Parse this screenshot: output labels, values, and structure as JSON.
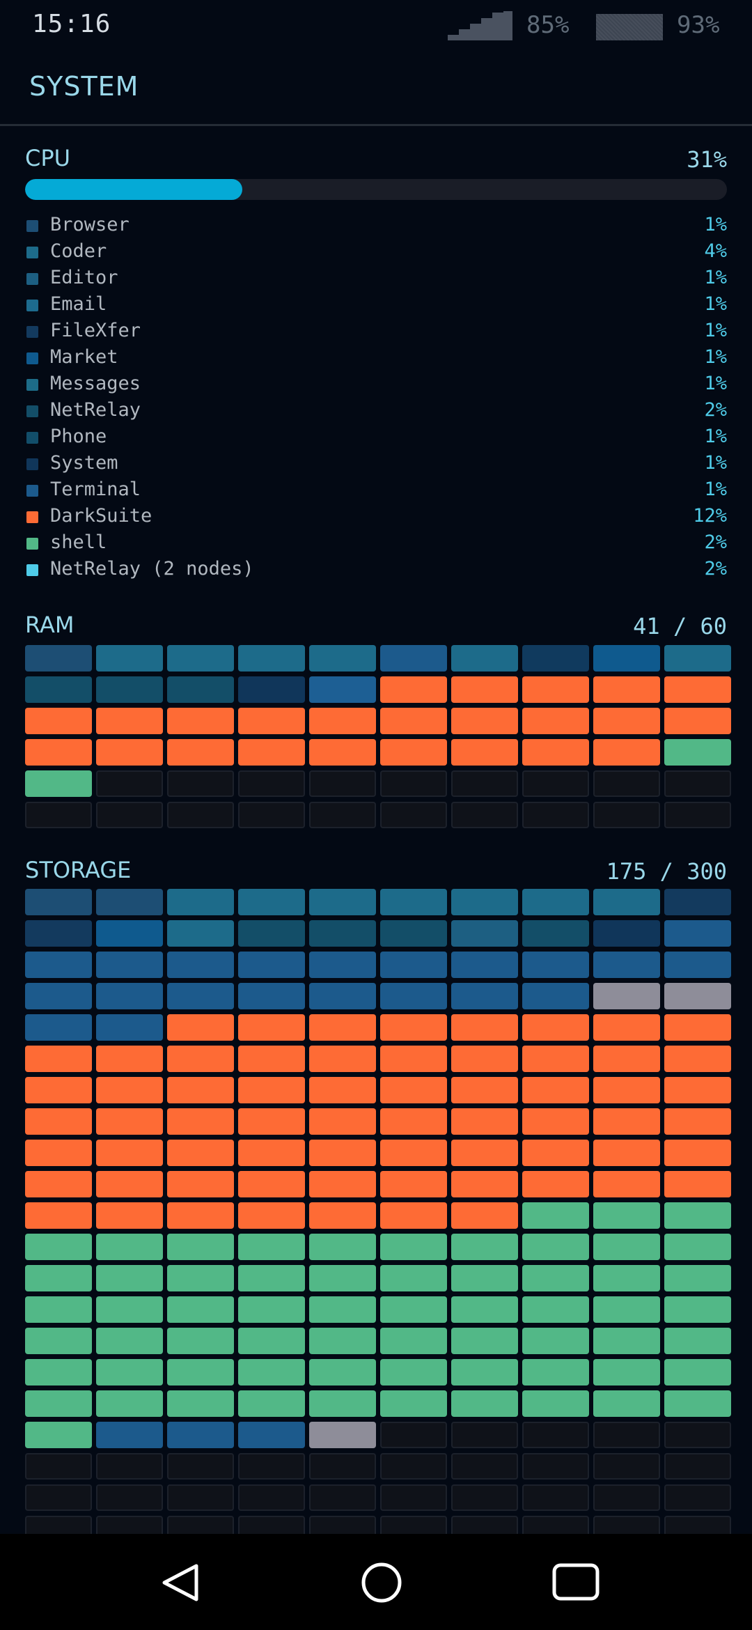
{
  "status_bar": {
    "time": "15:16",
    "signal_icon": "signal-icon",
    "signal_percent": "85%",
    "battery_icon": "battery-icon",
    "battery_percent": "93%"
  },
  "header": {
    "title": "SYSTEM"
  },
  "colors": {
    "accent": "#05aad6",
    "title": "#9ad8ea",
    "percent_text": "#4fcbe8",
    "darksuite": "#fe6b35",
    "shell": "#52b887",
    "netrelay_nodes": "#4fcbe8",
    "other": "#8e8d99",
    "empty": "#0f1219"
  },
  "cpu": {
    "label": "CPU",
    "percent_text": "31%",
    "usage_fraction": 0.31,
    "processes": [
      {
        "name": "Browser",
        "percent": "1%",
        "color": "#1d4e74"
      },
      {
        "name": "Coder",
        "percent": "4%",
        "color": "#1d6b8a"
      },
      {
        "name": "Editor",
        "percent": "1%",
        "color": "#1d5f82"
      },
      {
        "name": "Email",
        "percent": "1%",
        "color": "#1d6b8e"
      },
      {
        "name": "FileXfer",
        "percent": "1%",
        "color": "#133a5e"
      },
      {
        "name": "Market",
        "percent": "1%",
        "color": "#0f5a8e"
      },
      {
        "name": "Messages",
        "percent": "1%",
        "color": "#1d6c88"
      },
      {
        "name": "NetRelay",
        "percent": "2%",
        "color": "#134e68"
      },
      {
        "name": "Phone",
        "percent": "1%",
        "color": "#124e6a"
      },
      {
        "name": "System",
        "percent": "1%",
        "color": "#10365a"
      },
      {
        "name": "Terminal",
        "percent": "1%",
        "color": "#1c5a8c"
      },
      {
        "name": "DarkSuite",
        "percent": "12%",
        "color": "#fe6b35"
      },
      {
        "name": "shell",
        "percent": "2%",
        "color": "#52b887"
      },
      {
        "name": "NetRelay (2 nodes)",
        "percent": "2%",
        "color": "#4fcbe8"
      }
    ]
  },
  "ram": {
    "label": "RAM",
    "value_text": "41 / 60",
    "blocks": [
      "#1d4e74",
      "#1d6b8a",
      "#1d6b8a",
      "#1d6b8a",
      "#1d6b8a",
      "#1c5a8c",
      "#1d6b8a",
      "#103a5e",
      "#0f5a8e",
      "#1d6b8a",
      "#134e68",
      "#134e68",
      "#134e68",
      "#10365a",
      "#1d5f94",
      "#fe6b35",
      "#fe6b35",
      "#fe6b35",
      "#fe6b35",
      "#fe6b35",
      "#fe6b35",
      "#fe6b35",
      "#fe6b35",
      "#fe6b35",
      "#fe6b35",
      "#fe6b35",
      "#fe6b35",
      "#fe6b35",
      "#fe6b35",
      "#fe6b35",
      "#fe6b35",
      "#fe6b35",
      "#fe6b35",
      "#fe6b35",
      "#fe6b35",
      "#fe6b35",
      "#fe6b35",
      "#fe6b35",
      "#fe6b35",
      "#52b887",
      "#52b887",
      "empty",
      "empty",
      "empty",
      "empty",
      "empty",
      "empty",
      "empty",
      "empty",
      "empty",
      "empty",
      "empty",
      "empty",
      "empty",
      "empty",
      "empty",
      "empty",
      "empty",
      "empty",
      "empty"
    ]
  },
  "storage": {
    "label": "STORAGE",
    "value_text": "175 / 300",
    "blocks": [
      "#1d4e74",
      "#1d4e74",
      "#1d6b8a",
      "#1d6b8a",
      "#1d6b8a",
      "#1d6b8a",
      "#1d6b8a",
      "#1d6b8a",
      "#1d6b8a",
      "#133a5e",
      "#133a5e",
      "#0f5a8e",
      "#1d6b8a",
      "#134e68",
      "#134e68",
      "#134e68",
      "#1d5f82",
      "#134e68",
      "#10365a",
      "#1c5a8c",
      "#1c5a8c",
      "#1c5a8c",
      "#1c5a8c",
      "#1c5a8c",
      "#1c5a8c",
      "#1c5a8c",
      "#1c5a8c",
      "#1c5a8c",
      "#1c5a8c",
      "#1c5a8c",
      "#1c5a8c",
      "#1c5a8c",
      "#1c5a8c",
      "#1c5a8c",
      "#1c5a8c",
      "#1c5a8c",
      "#1c5a8c",
      "#1c5a8c",
      "#8e8d99",
      "#8e8d99",
      "#1c5a8c",
      "#1c5a8c",
      "#fe6b35",
      "#fe6b35",
      "#fe6b35",
      "#fe6b35",
      "#fe6b35",
      "#fe6b35",
      "#fe6b35",
      "#fe6b35",
      "#fe6b35",
      "#fe6b35",
      "#fe6b35",
      "#fe6b35",
      "#fe6b35",
      "#fe6b35",
      "#fe6b35",
      "#fe6b35",
      "#fe6b35",
      "#fe6b35",
      "#fe6b35",
      "#fe6b35",
      "#fe6b35",
      "#fe6b35",
      "#fe6b35",
      "#fe6b35",
      "#fe6b35",
      "#fe6b35",
      "#fe6b35",
      "#fe6b35",
      "#fe6b35",
      "#fe6b35",
      "#fe6b35",
      "#fe6b35",
      "#fe6b35",
      "#fe6b35",
      "#fe6b35",
      "#fe6b35",
      "#fe6b35",
      "#fe6b35",
      "#fe6b35",
      "#fe6b35",
      "#fe6b35",
      "#fe6b35",
      "#fe6b35",
      "#fe6b35",
      "#fe6b35",
      "#fe6b35",
      "#fe6b35",
      "#fe6b35",
      "#fe6b35",
      "#fe6b35",
      "#fe6b35",
      "#fe6b35",
      "#fe6b35",
      "#fe6b35",
      "#fe6b35",
      "#fe6b35",
      "#fe6b35",
      "#fe6b35",
      "#fe6b35",
      "#fe6b35",
      "#fe6b35",
      "#fe6b35",
      "#fe6b35",
      "#fe6b35",
      "#fe6b35",
      "#52b887",
      "#52b887",
      "#52b887",
      "#52b887",
      "#52b887",
      "#52b887",
      "#52b887",
      "#52b887",
      "#52b887",
      "#52b887",
      "#52b887",
      "#52b887",
      "#52b887",
      "#52b887",
      "#52b887",
      "#52b887",
      "#52b887",
      "#52b887",
      "#52b887",
      "#52b887",
      "#52b887",
      "#52b887",
      "#52b887",
      "#52b887",
      "#52b887",
      "#52b887",
      "#52b887",
      "#52b887",
      "#52b887",
      "#52b887",
      "#52b887",
      "#52b887",
      "#52b887",
      "#52b887",
      "#52b887",
      "#52b887",
      "#52b887",
      "#52b887",
      "#52b887",
      "#52b887",
      "#52b887",
      "#52b887",
      "#52b887",
      "#52b887",
      "#52b887",
      "#52b887",
      "#52b887",
      "#52b887",
      "#52b887",
      "#52b887",
      "#52b887",
      "#52b887",
      "#52b887",
      "#52b887",
      "#52b887",
      "#52b887",
      "#52b887",
      "#52b887",
      "#52b887",
      "#52b887",
      "#52b887",
      "#52b887",
      "#52b887",
      "#52b887",
      "#1c5a8c",
      "#1c5a8c",
      "#1c5a8c",
      "#8e8d99",
      "empty",
      "empty",
      "empty",
      "empty",
      "empty",
      "empty",
      "empty",
      "empty",
      "empty",
      "empty",
      "empty",
      "empty",
      "empty",
      "empty",
      "empty",
      "empty",
      "empty",
      "empty",
      "empty",
      "empty",
      "empty",
      "empty",
      "empty",
      "empty",
      "empty",
      "empty",
      "empty",
      "empty",
      "empty",
      "empty",
      "empty",
      "empty",
      "empty",
      "empty",
      "empty"
    ]
  },
  "nav_bar": {
    "back_icon": "back-triangle-icon",
    "home_icon": "home-circle-icon",
    "recents_icon": "recents-square-icon"
  }
}
